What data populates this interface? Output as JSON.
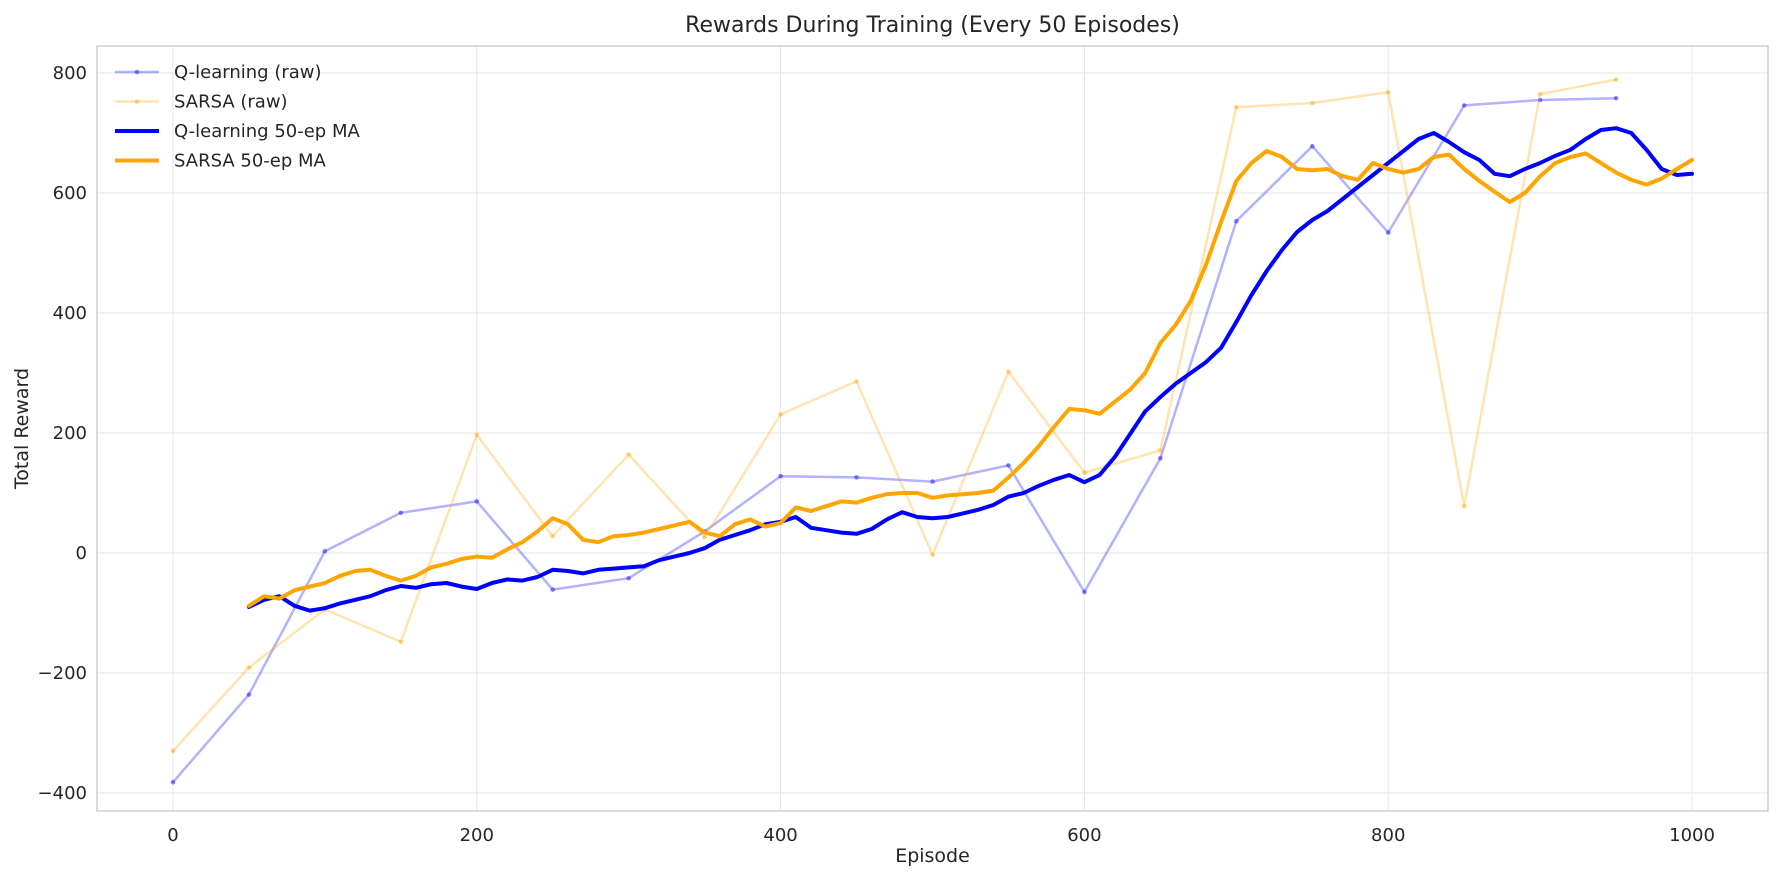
{
  "chart_data": {
    "type": "line",
    "title": "Rewards During Training (Every 50 Episodes)",
    "xlabel": "Episode",
    "ylabel": "Total Reward",
    "xlim": [
      -50,
      1050
    ],
    "ylim": [
      -430,
      845
    ],
    "xticks": [
      0,
      200,
      400,
      600,
      800,
      1000
    ],
    "yticks": [
      -400,
      -200,
      0,
      200,
      400,
      600,
      800
    ],
    "grid": true,
    "legend_position": "top-left",
    "series": [
      {
        "name": "Q-learning (raw)",
        "color": "#0000ff",
        "style": "raw",
        "x": [
          0,
          50,
          100,
          150,
          200,
          250,
          300,
          350,
          400,
          450,
          500,
          550,
          600,
          650,
          700,
          750,
          800,
          850,
          900,
          950
        ],
        "y": [
          -382,
          -236,
          3,
          67,
          86,
          -61,
          -42,
          36,
          128,
          126,
          119,
          146,
          -65,
          158,
          553,
          678,
          534,
          746,
          755,
          758
        ]
      },
      {
        "name": "SARSA (raw)",
        "color": "#ffa500",
        "style": "raw",
        "x": [
          0,
          50,
          100,
          150,
          200,
          250,
          300,
          350,
          400,
          450,
          500,
          550,
          600,
          650,
          700,
          750,
          800,
          850,
          900,
          950
        ],
        "y": [
          -330,
          -191,
          -94,
          -148,
          197,
          28,
          164,
          26,
          231,
          286,
          -3,
          302,
          134,
          171,
          743,
          750,
          768,
          78,
          765,
          789
        ]
      },
      {
        "name": "Q-learning 50-ep MA",
        "color": "#0000ff",
        "style": "ma",
        "x": [
          50,
          60,
          70,
          80,
          90,
          100,
          110,
          120,
          130,
          140,
          150,
          160,
          170,
          180,
          190,
          200,
          210,
          220,
          230,
          240,
          250,
          260,
          270,
          280,
          290,
          300,
          310,
          320,
          330,
          340,
          350,
          360,
          370,
          380,
          390,
          400,
          410,
          420,
          430,
          440,
          450,
          460,
          470,
          480,
          490,
          500,
          510,
          520,
          530,
          540,
          550,
          560,
          570,
          580,
          590,
          600,
          610,
          620,
          630,
          640,
          650,
          660,
          670,
          680,
          690,
          700,
          710,
          720,
          730,
          740,
          750,
          760,
          770,
          780,
          790,
          800,
          810,
          820,
          830,
          840,
          850,
          860,
          870,
          880,
          890,
          900,
          910,
          920,
          930,
          940,
          950,
          960,
          970,
          980,
          990,
          1000
        ],
        "y": [
          -90,
          -78,
          -72,
          -88,
          -96,
          -92,
          -84,
          -78,
          -72,
          -62,
          -55,
          -58,
          -52,
          -50,
          -56,
          -60,
          -50,
          -44,
          -46,
          -40,
          -28,
          -30,
          -34,
          -28,
          -26,
          -24,
          -22,
          -12,
          -6,
          0,
          8,
          22,
          30,
          38,
          48,
          52,
          60,
          42,
          38,
          34,
          32,
          40,
          56,
          68,
          60,
          58,
          60,
          66,
          72,
          80,
          94,
          100,
          112,
          122,
          130,
          118,
          130,
          160,
          198,
          236,
          260,
          282,
          300,
          318,
          342,
          385,
          430,
          470,
          505,
          535,
          555,
          570,
          590,
          610,
          630,
          650,
          670,
          690,
          700,
          685,
          668,
          655,
          632,
          628,
          640,
          650,
          662,
          672,
          690,
          705,
          708,
          700,
          672,
          640,
          630,
          632
        ]
      },
      {
        "name": "SARSA 50-ep MA",
        "color": "#ffa500",
        "style": "ma",
        "x": [
          50,
          60,
          70,
          80,
          90,
          100,
          110,
          120,
          130,
          140,
          150,
          160,
          170,
          180,
          190,
          200,
          210,
          220,
          230,
          240,
          250,
          260,
          270,
          280,
          290,
          300,
          310,
          320,
          330,
          340,
          350,
          360,
          370,
          380,
          390,
          400,
          410,
          420,
          430,
          440,
          450,
          460,
          470,
          480,
          490,
          500,
          510,
          520,
          530,
          540,
          550,
          560,
          570,
          580,
          590,
          600,
          610,
          620,
          630,
          640,
          650,
          660,
          670,
          680,
          690,
          700,
          710,
          720,
          730,
          740,
          750,
          760,
          770,
          780,
          790,
          800,
          810,
          820,
          830,
          840,
          850,
          860,
          870,
          880,
          890,
          900,
          910,
          920,
          930,
          940,
          950,
          960,
          970,
          980,
          990,
          1000
        ],
        "y": [
          -88,
          -72,
          -76,
          -62,
          -56,
          -50,
          -38,
          -30,
          -28,
          -38,
          -46,
          -38,
          -24,
          -18,
          -10,
          -6,
          -8,
          6,
          18,
          36,
          58,
          48,
          22,
          18,
          28,
          30,
          34,
          40,
          46,
          52,
          34,
          28,
          48,
          56,
          44,
          50,
          76,
          70,
          78,
          86,
          84,
          92,
          98,
          100,
          100,
          92,
          96,
          98,
          100,
          104,
          126,
          150,
          178,
          210,
          240,
          238,
          232,
          252,
          272,
          300,
          350,
          380,
          420,
          480,
          552,
          620,
          650,
          670,
          660,
          640,
          638,
          640,
          628,
          622,
          650,
          640,
          634,
          640,
          660,
          664,
          640,
          620,
          602,
          585,
          600,
          628,
          650,
          660,
          666,
          650,
          634,
          622,
          614,
          624,
          640,
          655
        ]
      }
    ]
  }
}
